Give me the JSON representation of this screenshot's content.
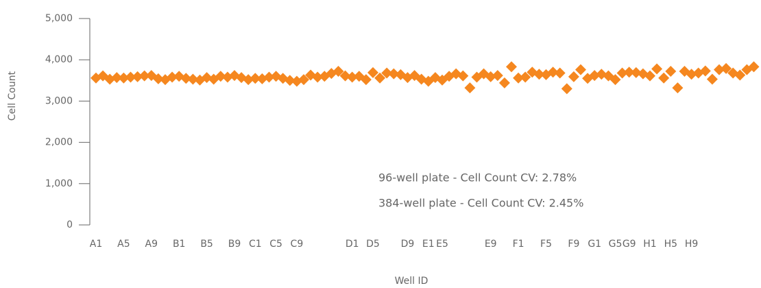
{
  "chart_data": {
    "type": "scatter",
    "x_label": "Well ID",
    "y_label": "Cell Count",
    "annotations": [
      "96-well plate - Cell Count CV: 2.78%",
      "384-well plate - Cell Count CV: 2.45%"
    ],
    "color": "#f5871f",
    "marker": "diamond",
    "ylim": [
      0,
      5000
    ],
    "yticks": [
      0,
      {
        "value": 1000,
        "label": "1,000"
      },
      {
        "value": 2000,
        "label": "2,000"
      },
      {
        "value": 3000,
        "label": "3,000"
      },
      {
        "value": 4000,
        "label": "4,000"
      },
      {
        "value": 5000,
        "label": "5,000"
      }
    ],
    "categories": [
      "A1",
      null,
      null,
      null,
      "A5",
      null,
      null,
      null,
      "A9",
      null,
      null,
      null,
      "B1",
      null,
      null,
      null,
      "B5",
      null,
      null,
      null,
      "B9",
      null,
      null,
      "C1",
      null,
      null,
      "C5",
      null,
      null,
      "C9",
      null,
      null,
      null,
      null,
      null,
      null,
      null,
      "D1",
      null,
      null,
      "D5",
      null,
      null,
      null,
      null,
      "D9",
      null,
      null,
      "E1",
      null,
      "E5",
      null,
      null,
      null,
      null,
      null,
      null,
      "E9",
      null,
      null,
      null,
      "F1",
      null,
      null,
      null,
      "F5",
      null,
      null,
      null,
      "F9",
      null,
      null,
      "G1",
      null,
      null,
      "G5",
      null,
      "G9",
      null,
      null,
      "H1",
      null,
      null,
      "H5",
      null,
      null,
      "H9",
      null,
      null,
      null,
      null,
      null,
      null,
      null,
      null,
      null
    ],
    "values": [
      3560,
      3610,
      3530,
      3570,
      3560,
      3580,
      3590,
      3610,
      3620,
      3540,
      3520,
      3580,
      3600,
      3550,
      3530,
      3510,
      3570,
      3530,
      3600,
      3580,
      3620,
      3570,
      3520,
      3550,
      3540,
      3580,
      3600,
      3550,
      3500,
      3480,
      3520,
      3630,
      3580,
      3600,
      3670,
      3720,
      3610,
      3580,
      3600,
      3520,
      3690,
      3560,
      3680,
      3660,
      3640,
      3570,
      3620,
      3530,
      3480,
      3570,
      3510,
      3600,
      3660,
      3610,
      3320,
      3580,
      3660,
      3590,
      3620,
      3440,
      3830,
      3560,
      3580,
      3700,
      3650,
      3640,
      3700,
      3680,
      3300,
      3590,
      3760,
      3550,
      3620,
      3650,
      3610,
      3520,
      3680,
      3700,
      3690,
      3660,
      3610,
      3780,
      3560,
      3720,
      3320,
      3720,
      3650,
      3680,
      3730,
      3530,
      3760,
      3790,
      3680,
      3630,
      3760,
      3830
    ]
  }
}
